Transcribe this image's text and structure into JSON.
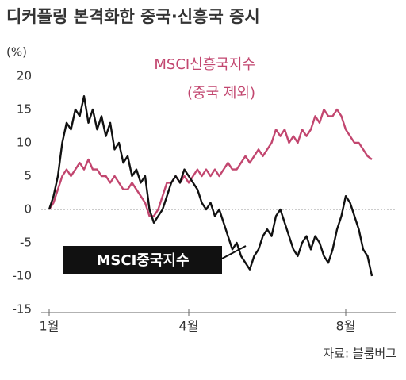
{
  "chart_data": {
    "type": "line",
    "title": "디커플링 본격화한 중국·신흥국 증시",
    "y_unit": "(%)",
    "annotation": "(중국 제외)",
    "source": "자료: 블룸버그",
    "categories": [
      "1월",
      null,
      null,
      null,
      null,
      null,
      null,
      null,
      null,
      null,
      null,
      null,
      null,
      null,
      null,
      null,
      null,
      null,
      null,
      null,
      null,
      null,
      null,
      null,
      null,
      null,
      null,
      null,
      null,
      null,
      null,
      null,
      "4월",
      null,
      null,
      null,
      null,
      null,
      null,
      null,
      null,
      null,
      null,
      null,
      null,
      null,
      null,
      null,
      null,
      null,
      null,
      null,
      null,
      null,
      null,
      null,
      null,
      null,
      null,
      null,
      null,
      null,
      null,
      null,
      null,
      null,
      null,
      null,
      "8월",
      null,
      null,
      null,
      null,
      null,
      null
    ],
    "series": [
      {
        "name": "MSCI신흥국지수",
        "color": "#c2466f",
        "values": [
          0,
          1,
          3,
          5,
          6,
          5,
          6,
          7,
          6,
          7.5,
          6,
          6,
          5,
          5,
          4,
          5,
          4,
          3,
          3,
          4,
          3,
          2,
          1,
          -1,
          -1,
          0,
          2,
          4,
          4,
          5,
          4,
          5,
          4,
          5,
          6,
          5,
          6,
          5,
          6,
          5,
          6,
          7,
          6,
          6,
          7,
          8,
          7,
          8,
          9,
          8,
          9,
          10,
          12,
          11,
          12,
          10,
          11,
          10,
          12,
          11,
          12,
          14,
          13,
          15,
          14,
          14,
          15,
          14,
          12,
          11,
          10,
          10,
          9,
          8,
          7.5
        ]
      },
      {
        "name": "MSCI중국지수",
        "color": "#111111",
        "values": [
          0,
          2,
          5,
          10,
          13,
          12,
          15,
          14,
          17,
          13,
          15,
          12,
          14,
          11,
          13,
          9,
          10,
          7,
          8,
          5,
          6,
          4,
          5,
          0,
          -2,
          -1,
          0,
          2,
          4,
          5,
          4,
          6,
          5,
          4,
          3,
          1,
          0,
          1,
          -1,
          0,
          -2,
          -4,
          -6,
          -5,
          -7,
          -8,
          -9,
          -7,
          -6,
          -4,
          -3,
          -4,
          -1,
          0,
          -2,
          -4,
          -6,
          -7,
          -5,
          -4,
          -6,
          -4,
          -5,
          -7,
          -8,
          -6,
          -3,
          -1,
          2,
          1,
          -1,
          -3,
          -6,
          -7,
          -10
        ]
      }
    ],
    "ylim": [
      -15,
      20
    ],
    "yticks": [
      -15,
      -10,
      -5,
      0,
      5,
      10,
      15,
      20
    ]
  }
}
